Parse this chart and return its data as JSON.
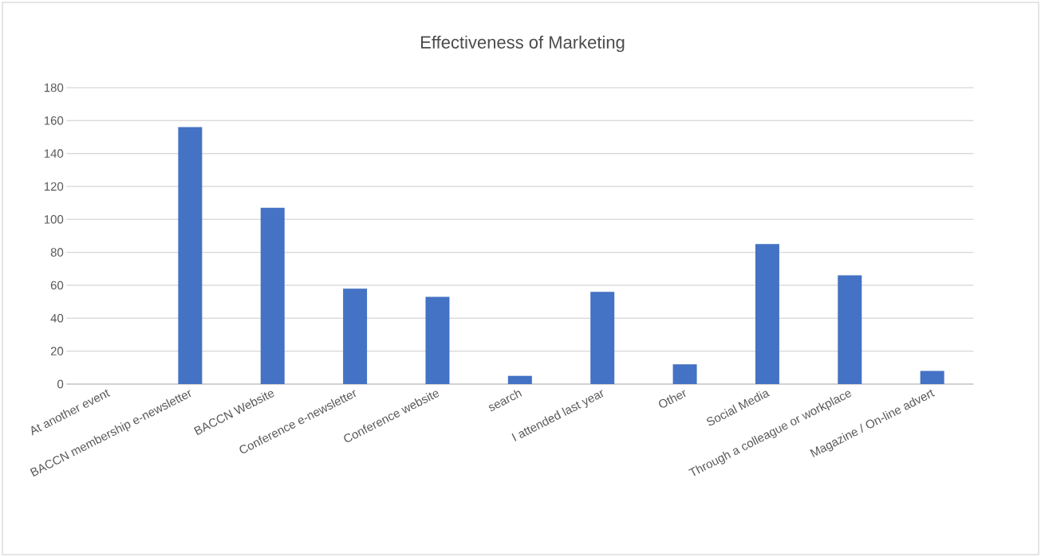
{
  "chart_data": {
    "type": "bar",
    "title": "Effectiveness of Marketing",
    "categories": [
      "At another event",
      "BACCN membership e-newsletter",
      "BACCN Website",
      "Conference e-newsletter",
      "Conference website",
      "search",
      "I attended last year",
      "Other",
      "Social Media",
      "Through a colleague or workplace",
      "Magazine / On-line advert"
    ],
    "values": [
      0,
      156,
      107,
      58,
      53,
      5,
      56,
      12,
      85,
      66,
      8
    ],
    "color": "#4472c4",
    "ylim": [
      0,
      180
    ],
    "yticks": [
      0,
      20,
      40,
      60,
      80,
      100,
      120,
      140,
      160,
      180
    ],
    "grid": "y"
  }
}
